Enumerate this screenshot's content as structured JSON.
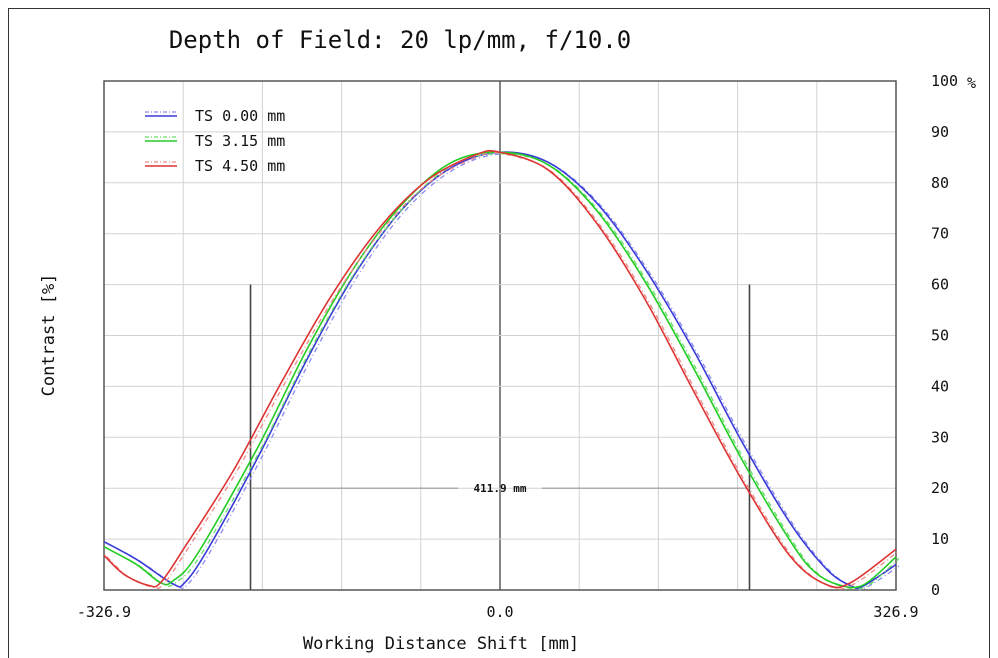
{
  "chart_data": {
    "type": "line",
    "title": "Depth of Field: 20 lp/mm, f/10.0",
    "xlabel": "Working Distance Shift [mm]",
    "ylabel": "Contrast [%]",
    "y_unit": "%",
    "xlim": [
      -326.9,
      326.9
    ],
    "ylim": [
      0,
      100
    ],
    "x_ticks": [
      "-326.9",
      "0.0",
      "326.9"
    ],
    "y_ticks": [
      "0",
      "10",
      "20",
      "30",
      "40",
      "50",
      "60",
      "70",
      "80",
      "90",
      "100"
    ],
    "y_axis_side": "right",
    "grid": true,
    "legend_position": "top-left",
    "series": [
      {
        "name": "TS 0.00 mm",
        "color": "#3a3ad8",
        "dashed_color": "#8a8aee",
        "x": [
          -326.9,
          -300,
          -270,
          -260,
          -240,
          -200,
          -160,
          -120,
          -80,
          -40,
          0,
          40,
          80,
          120,
          160,
          200,
          240,
          270,
          290,
          300,
          326.9
        ],
        "y": [
          9.5,
          6,
          1.2,
          1.5,
          8.5,
          26,
          45,
          62,
          75,
          83,
          86,
          84,
          76,
          63,
          47,
          29,
          13,
          4,
          0.8,
          0.8,
          5
        ]
      },
      {
        "name": "TS 3.15 mm",
        "color": "#22cc22",
        "dashed_color": "#66dd66",
        "x": [
          -326.9,
          -300,
          -280,
          -270,
          -250,
          -200,
          -160,
          -120,
          -80,
          -40,
          0,
          40,
          80,
          120,
          160,
          200,
          240,
          260,
          280,
          300,
          326.9
        ],
        "y": [
          8.5,
          5,
          1.4,
          1.8,
          7,
          28,
          47,
          63.5,
          76,
          84,
          86,
          83.5,
          74.5,
          60.5,
          43.5,
          25.5,
          9.5,
          3.5,
          1,
          1,
          6.5
        ]
      },
      {
        "name": "TS 4.50 mm",
        "color": "#dd3333",
        "dashed_color": "#ee8888",
        "x": [
          -326.9,
          -310,
          -290,
          -280,
          -260,
          -220,
          -180,
          -140,
          -100,
          -60,
          -20,
          0,
          40,
          80,
          120,
          160,
          200,
          240,
          270,
          290,
          326.9
        ],
        "y": [
          6.8,
          3,
          0.9,
          1.5,
          8.5,
          23.5,
          41,
          57.5,
          71,
          80.5,
          85.5,
          86,
          82.5,
          72,
          57,
          39,
          21.5,
          6.5,
          1,
          1.5,
          8
        ]
      }
    ],
    "dof_markers": {
      "x_left": -205.95,
      "x_right": 205.95,
      "top": 60,
      "span_y": 20,
      "label": "411.9 mm"
    }
  }
}
